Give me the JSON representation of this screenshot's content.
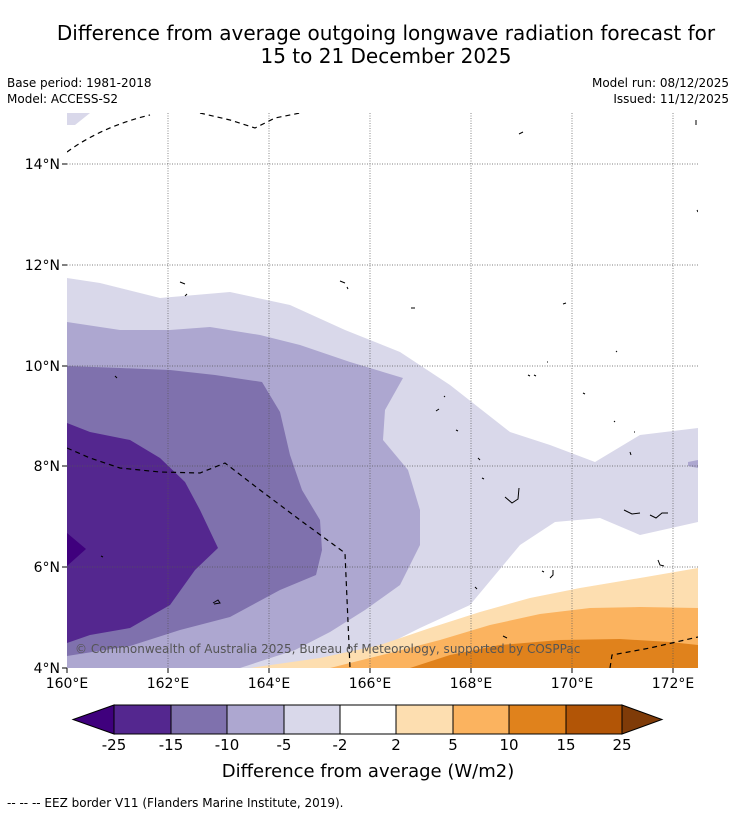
{
  "title": {
    "line1": "Difference from average outgoing longwave radiation forecast for",
    "line2": "15 to 21 December 2025"
  },
  "meta": {
    "base_period": "Base period: 1981-2018",
    "model": "Model: ACCESS-S2",
    "model_run": "Model run: 08/12/2025",
    "issued": "Issued: 11/12/2025"
  },
  "map": {
    "lat_labels": [
      "14°N",
      "12°N",
      "10°N",
      "8°N",
      "6°N",
      "4°N"
    ],
    "lon_labels": [
      "160°E",
      "162°E",
      "164°E",
      "166°E",
      "168°E",
      "170°E",
      "172°E"
    ],
    "copyright": "© Commonwealth of Australia 2025, Bureau of Meteorology, supported by COSPPac"
  },
  "colorbar": {
    "title": "Difference from average (W/m2)",
    "ticks": [
      "-25",
      "-15",
      "-10",
      "-5",
      "-2",
      "2",
      "5",
      "10",
      "15",
      "25"
    ],
    "colors": [
      "#3f007d",
      "#54278f",
      "#7f71ad",
      "#ada7d0",
      "#d9d8ea",
      "#ffffff",
      "#fddeb0",
      "#fbb35f",
      "#e0821c",
      "#b25506",
      "#7f3b08"
    ]
  },
  "footnote": "--  --  -- EEZ border V11 (Flanders Marine Institute, 2019)."
}
